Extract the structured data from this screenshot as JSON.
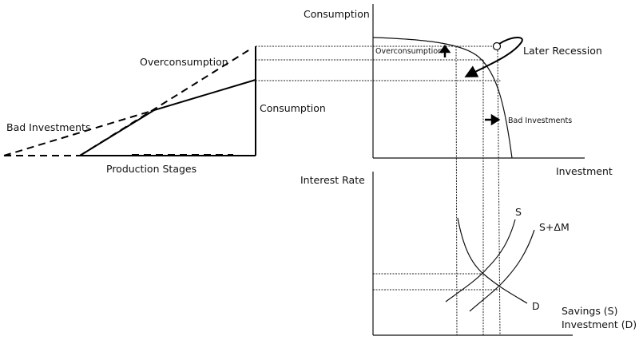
{
  "left_diagram": {
    "overconsumption_label": "Overconsumption",
    "bad_investments_label": "Bad Investments",
    "consumption_label": "Consumption",
    "x_axis_label": "Production Stages"
  },
  "top_right": {
    "y_axis_label": "Consumption",
    "x_axis_label": "Investment",
    "overconsumption_label": "Overconsumption",
    "bad_investments_label": "Bad Investments",
    "later_recession_label": "Later Recession"
  },
  "bottom_right": {
    "y_axis_label": "Interest Rate",
    "supply_label": "S",
    "supply_shift_label": "S+ΔM",
    "demand_label": "D",
    "x_axis_label_1": "Savings (S)",
    "x_axis_label_2": "Investment (D)"
  }
}
